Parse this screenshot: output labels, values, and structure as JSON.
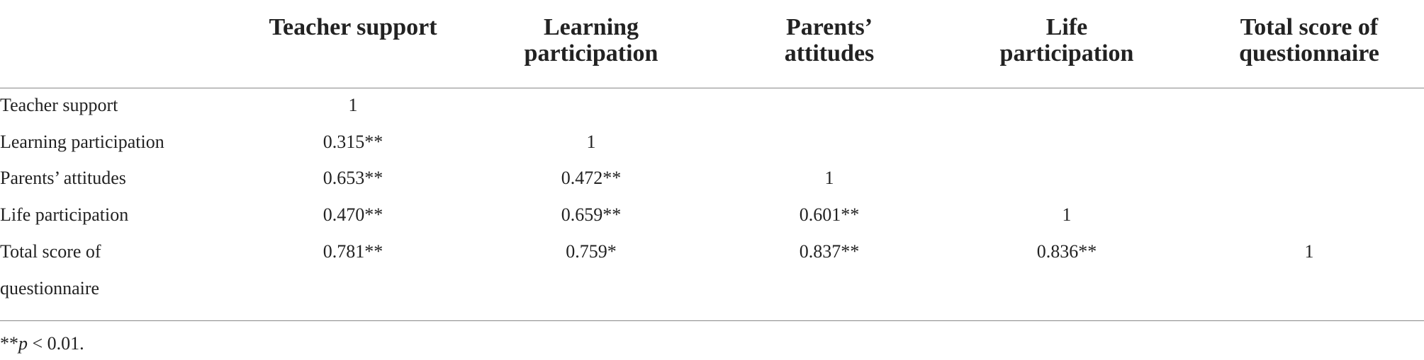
{
  "table": {
    "columns": [
      "Teacher support",
      "Learning participation",
      "Parents’ attitudes",
      "Life participation",
      "Total score of questionnaire"
    ],
    "rows": [
      {
        "label": "Teacher support",
        "cells": [
          "1"
        ]
      },
      {
        "label": "Learning participation",
        "cells": [
          "0.315**",
          "1"
        ]
      },
      {
        "label": "Parents’ attitudes",
        "cells": [
          "0.653**",
          "0.472**",
          "1"
        ]
      },
      {
        "label": "Life participation",
        "cells": [
          "0.470**",
          "0.659**",
          "0.601**",
          "1"
        ]
      },
      {
        "label": "Total score of questionnaire",
        "cells": [
          "0.781**",
          "0.759*",
          "0.837**",
          "0.836**",
          "1"
        ]
      }
    ]
  },
  "footnote": {
    "prefix": "**",
    "italic": "p",
    "suffix": " < 0.01."
  }
}
